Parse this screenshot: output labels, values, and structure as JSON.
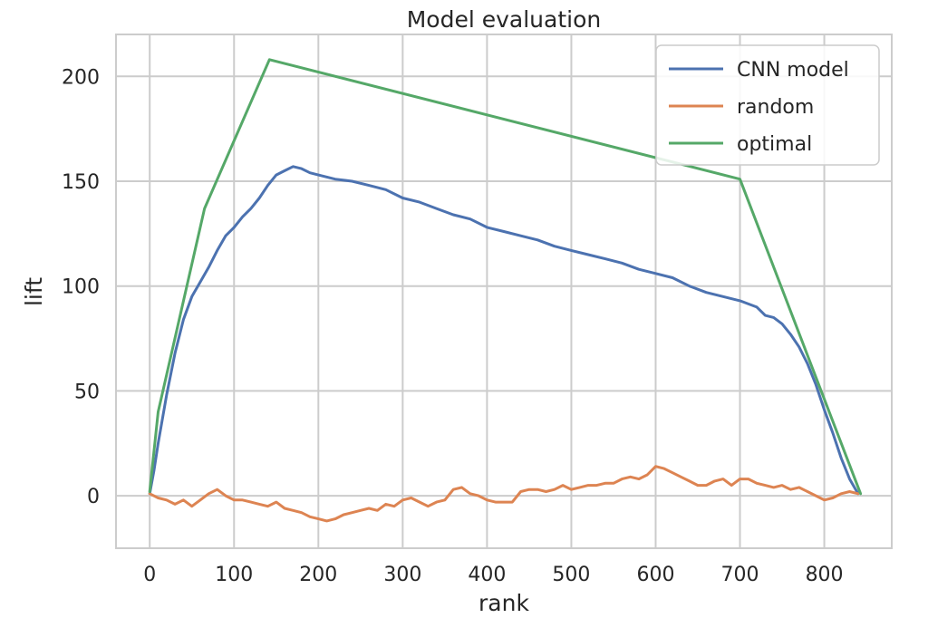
{
  "chart_data": {
    "type": "line",
    "title": "Model evaluation",
    "xlabel": "rank",
    "ylabel": "lift",
    "xlim": [
      -40,
      880
    ],
    "ylim": [
      -25,
      220
    ],
    "xticks": [
      0,
      100,
      200,
      300,
      400,
      500,
      600,
      700,
      800
    ],
    "yticks": [
      0,
      50,
      100,
      150,
      200
    ],
    "grid": true,
    "legend_position": "top-right",
    "series": [
      {
        "name": "CNN model",
        "color": "#4c72b0",
        "x": [
          0,
          5,
          10,
          20,
          30,
          40,
          50,
          60,
          70,
          80,
          90,
          100,
          110,
          120,
          130,
          140,
          150,
          160,
          170,
          180,
          190,
          200,
          220,
          240,
          260,
          280,
          300,
          320,
          340,
          360,
          380,
          400,
          420,
          440,
          460,
          480,
          500,
          520,
          540,
          560,
          580,
          600,
          620,
          640,
          660,
          680,
          700,
          720,
          730,
          740,
          750,
          760,
          770,
          780,
          790,
          800,
          810,
          820,
          830,
          840
        ],
        "y": [
          1,
          12,
          25,
          48,
          68,
          84,
          95,
          102,
          109,
          117,
          124,
          128,
          133,
          137,
          142,
          148,
          153,
          155,
          157,
          156,
          154,
          153,
          151,
          150,
          148,
          146,
          142,
          140,
          137,
          134,
          132,
          128,
          126,
          124,
          122,
          119,
          117,
          115,
          113,
          111,
          108,
          106,
          104,
          100,
          97,
          95,
          93,
          90,
          86,
          85,
          82,
          77,
          71,
          63,
          53,
          41,
          30,
          18,
          8,
          1
        ]
      },
      {
        "name": "random",
        "color": "#dd8452",
        "x": [
          0,
          10,
          20,
          30,
          40,
          50,
          60,
          70,
          80,
          90,
          100,
          110,
          120,
          130,
          140,
          150,
          160,
          170,
          180,
          190,
          200,
          210,
          220,
          230,
          240,
          250,
          260,
          270,
          280,
          290,
          300,
          310,
          320,
          330,
          340,
          350,
          360,
          370,
          380,
          390,
          400,
          410,
          420,
          430,
          440,
          450,
          460,
          470,
          480,
          490,
          500,
          510,
          520,
          530,
          540,
          550,
          560,
          570,
          580,
          590,
          600,
          610,
          620,
          630,
          640,
          650,
          660,
          670,
          680,
          690,
          700,
          710,
          720,
          730,
          740,
          750,
          760,
          770,
          780,
          790,
          800,
          810,
          820,
          830,
          840
        ],
        "y": [
          1,
          -1,
          -2,
          -4,
          -2,
          -5,
          -2,
          1,
          3,
          0,
          -2,
          -2,
          -3,
          -4,
          -5,
          -3,
          -6,
          -7,
          -8,
          -10,
          -11,
          -12,
          -11,
          -9,
          -8,
          -7,
          -6,
          -7,
          -4,
          -5,
          -2,
          -1,
          -3,
          -5,
          -3,
          -2,
          3,
          4,
          1,
          0,
          -2,
          -3,
          -3,
          -3,
          2,
          3,
          3,
          2,
          3,
          5,
          3,
          4,
          5,
          5,
          6,
          6,
          8,
          9,
          8,
          10,
          14,
          13,
          11,
          9,
          7,
          5,
          5,
          7,
          8,
          5,
          8,
          8,
          6,
          5,
          4,
          5,
          3,
          4,
          2,
          0,
          -2,
          -1,
          1,
          2,
          1
        ]
      },
      {
        "name": "optimal",
        "color": "#55a868",
        "x": [
          0,
          10,
          65,
          142,
          700,
          843
        ],
        "y": [
          2,
          40,
          137,
          208,
          151,
          1
        ]
      }
    ]
  }
}
